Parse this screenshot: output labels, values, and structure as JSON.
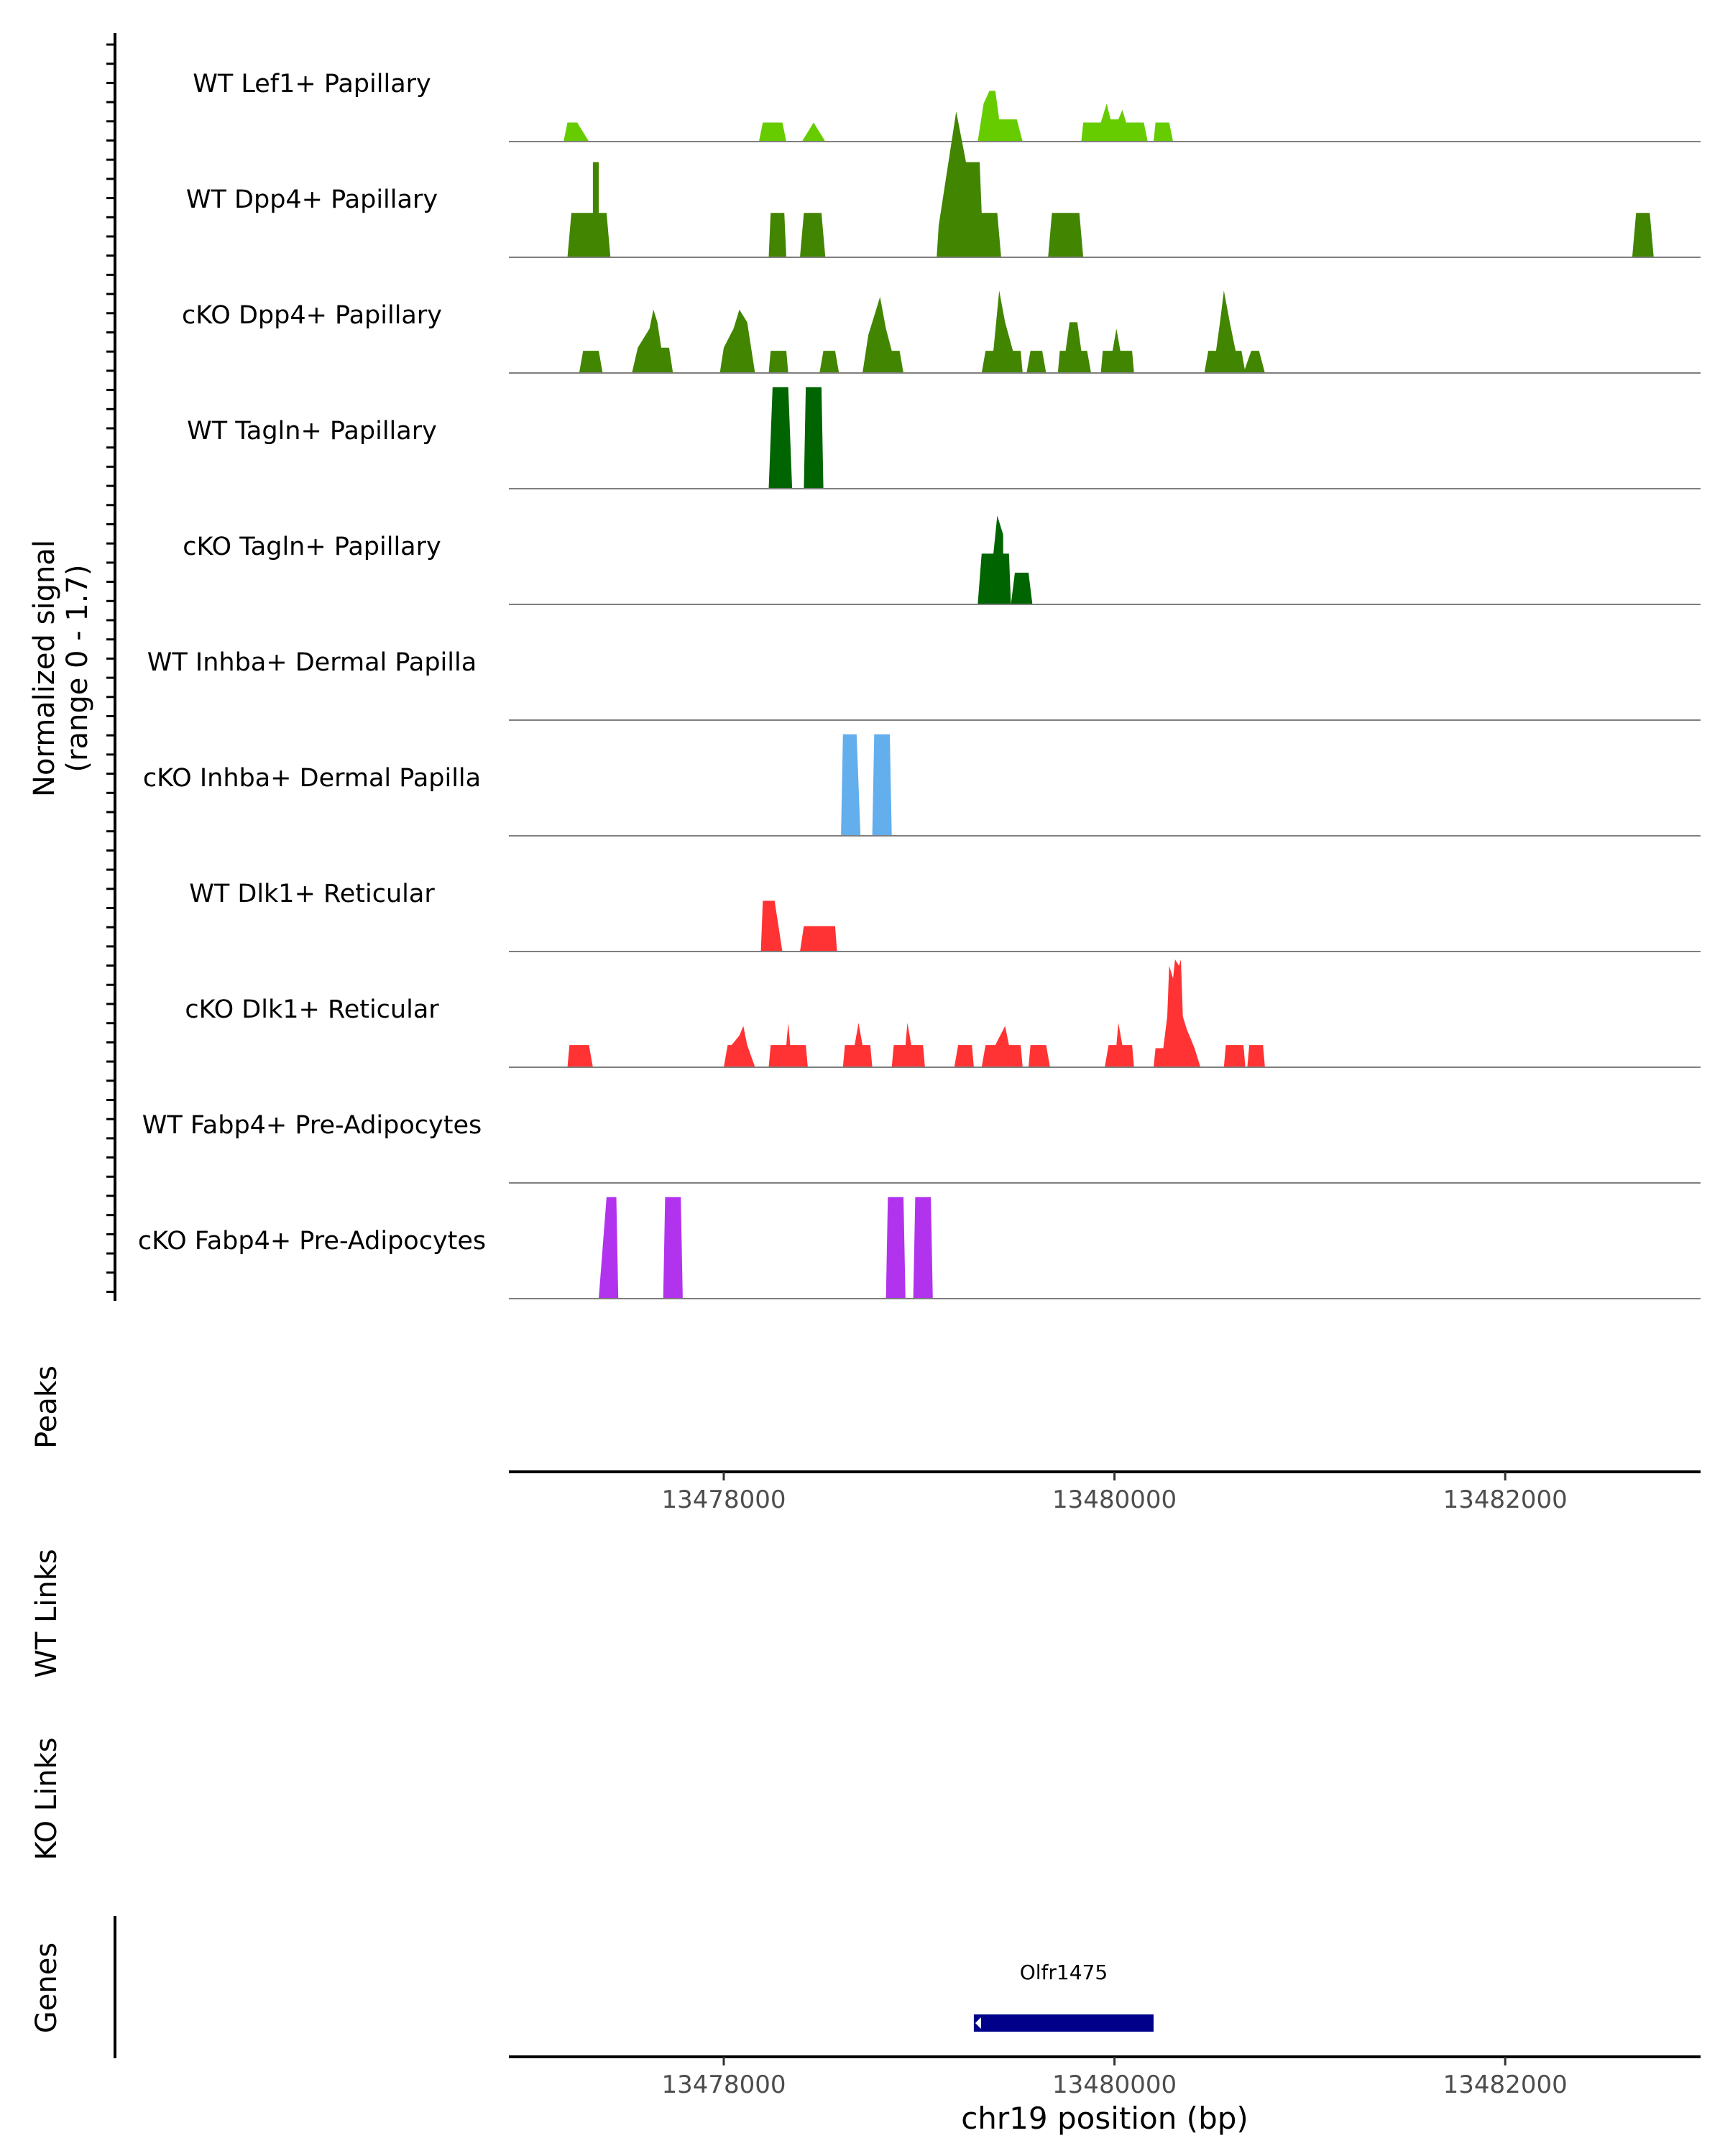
{
  "chart_data": {
    "type": "area",
    "title": "",
    "chromosome": "chr19",
    "x_range": [
      13476900,
      13483000
    ],
    "xlabel": "chr19 position (bp)",
    "x_ticks": [
      13478000,
      13480000,
      13482000
    ],
    "x_tick_labels": [
      "13478000",
      "13480000",
      "13482000"
    ],
    "ylabel_line1": "Normalized signal",
    "ylabel_line2": "(range 0 - 1.7)",
    "y_range": [
      0,
      1.7
    ],
    "tracks": [
      {
        "name": "WT Lef1+ Papillary",
        "color": "#66cc00",
        "points": [
          [
            13477180,
            0
          ],
          [
            13477200,
            0.3
          ],
          [
            13477250,
            0.3
          ],
          [
            13477310,
            0
          ],
          [
            13478180,
            0
          ],
          [
            13478200,
            0.3
          ],
          [
            13478300,
            0.3
          ],
          [
            13478320,
            0
          ],
          [
            13478400,
            0
          ],
          [
            13478460,
            0.3
          ],
          [
            13478520,
            0
          ],
          [
            13479300,
            0
          ],
          [
            13479330,
            0.6
          ],
          [
            13479360,
            0.8
          ],
          [
            13479390,
            0.8
          ],
          [
            13479410,
            0.35
          ],
          [
            13479500,
            0.35
          ],
          [
            13479530,
            0
          ],
          [
            13479830,
            0
          ],
          [
            13479840,
            0.3
          ],
          [
            13479930,
            0.3
          ],
          [
            13479960,
            0.6
          ],
          [
            13479980,
            0.35
          ],
          [
            13480020,
            0.35
          ],
          [
            13480040,
            0.5
          ],
          [
            13480060,
            0.3
          ],
          [
            13480150,
            0.3
          ],
          [
            13480170,
            0
          ],
          [
            13480200,
            0
          ],
          [
            13480210,
            0.3
          ],
          [
            13480280,
            0.3
          ],
          [
            13480300,
            0
          ]
        ]
      },
      {
        "name": "WT Dpp4+ Papillary",
        "color": "#428500",
        "points": [
          [
            13477200,
            0
          ],
          [
            13477220,
            0.7
          ],
          [
            13477330,
            0.7
          ],
          [
            13477330,
            1.5
          ],
          [
            13477360,
            1.5
          ],
          [
            13477360,
            0.7
          ],
          [
            13477400,
            0.7
          ],
          [
            13477420,
            0
          ],
          [
            13478230,
            0
          ],
          [
            13478240,
            0.7
          ],
          [
            13478310,
            0.7
          ],
          [
            13478320,
            0
          ],
          [
            13478390,
            0
          ],
          [
            13478410,
            0.7
          ],
          [
            13478500,
            0.7
          ],
          [
            13478520,
            0
          ],
          [
            13479090,
            0
          ],
          [
            13479100,
            0.5
          ],
          [
            13479190,
            2.3
          ],
          [
            13479240,
            1.5
          ],
          [
            13479310,
            1.5
          ],
          [
            13479320,
            0.7
          ],
          [
            13479400,
            0.7
          ],
          [
            13479420,
            0
          ],
          [
            13479660,
            0
          ],
          [
            13479680,
            0.7
          ],
          [
            13479820,
            0.7
          ],
          [
            13479840,
            0
          ],
          [
            13482650,
            0
          ],
          [
            13482670,
            0.7
          ],
          [
            13482740,
            0.7
          ],
          [
            13482760,
            0
          ]
        ]
      },
      {
        "name": "cKO Dpp4+ Papillary",
        "color": "#428500",
        "points": [
          [
            13477260,
            0
          ],
          [
            13477280,
            0.35
          ],
          [
            13477360,
            0.35
          ],
          [
            13477380,
            0
          ],
          [
            13477530,
            0
          ],
          [
            13477560,
            0.4
          ],
          [
            13477620,
            0.7
          ],
          [
            13477640,
            1
          ],
          [
            13477660,
            0.8
          ],
          [
            13477680,
            0.4
          ],
          [
            13477720,
            0.4
          ],
          [
            13477740,
            0
          ],
          [
            13477980,
            0
          ],
          [
            13478000,
            0.4
          ],
          [
            13478050,
            0.7
          ],
          [
            13478080,
            1
          ],
          [
            13478120,
            0.8
          ],
          [
            13478140,
            0.4
          ],
          [
            13478160,
            0
          ],
          [
            13478230,
            0
          ],
          [
            13478240,
            0.35
          ],
          [
            13478320,
            0.35
          ],
          [
            13478330,
            0
          ],
          [
            13478490,
            0
          ],
          [
            13478510,
            0.35
          ],
          [
            13478570,
            0.35
          ],
          [
            13478590,
            0
          ],
          [
            13478710,
            0
          ],
          [
            13478740,
            0.6
          ],
          [
            13478780,
            1
          ],
          [
            13478800,
            1.2
          ],
          [
            13478830,
            0.7
          ],
          [
            13478860,
            0.35
          ],
          [
            13478900,
            0.35
          ],
          [
            13478920,
            0
          ],
          [
            13479320,
            0
          ],
          [
            13479340,
            0.35
          ],
          [
            13479380,
            0.35
          ],
          [
            13479410,
            1.3
          ],
          [
            13479440,
            0.8
          ],
          [
            13479480,
            0.35
          ],
          [
            13479520,
            0.35
          ],
          [
            13479530,
            0
          ],
          [
            13479550,
            0
          ],
          [
            13479570,
            0.35
          ],
          [
            13479630,
            0.35
          ],
          [
            13479650,
            0
          ],
          [
            13479710,
            0
          ],
          [
            13479720,
            0.35
          ],
          [
            13479750,
            0.35
          ],
          [
            13479770,
            0.8
          ],
          [
            13479810,
            0.8
          ],
          [
            13479830,
            0.35
          ],
          [
            13479860,
            0.35
          ],
          [
            13479880,
            0
          ],
          [
            13479930,
            0
          ],
          [
            13479940,
            0.35
          ],
          [
            13479990,
            0.35
          ],
          [
            13480010,
            0.7
          ],
          [
            13480030,
            0.35
          ],
          [
            13480090,
            0.35
          ],
          [
            13480100,
            0
          ],
          [
            13480460,
            0
          ],
          [
            13480480,
            0.35
          ],
          [
            13480520,
            0.35
          ],
          [
            13480540,
            0.8
          ],
          [
            13480560,
            1.3
          ],
          [
            13480590,
            0.8
          ],
          [
            13480620,
            0.35
          ],
          [
            13480650,
            0.35
          ],
          [
            13480670,
            0
          ],
          [
            13480660,
            0
          ],
          [
            13480700,
            0.35
          ],
          [
            13480740,
            0.35
          ],
          [
            13480770,
            0
          ]
        ]
      },
      {
        "name": "WT Tagln+ Papillary",
        "color": "#006400",
        "points": [
          [
            13478230,
            0
          ],
          [
            13478250,
            1.6
          ],
          [
            13478330,
            1.6
          ],
          [
            13478350,
            0
          ],
          [
            13478410,
            0
          ],
          [
            13478420,
            1.6
          ],
          [
            13478500,
            1.6
          ],
          [
            13478510,
            0
          ]
        ]
      },
      {
        "name": "cKO Tagln+ Papillary",
        "color": "#006400",
        "points": [
          [
            13479300,
            0
          ],
          [
            13479320,
            0.8
          ],
          [
            13479380,
            0.8
          ],
          [
            13479400,
            1.4
          ],
          [
            13479430,
            1.1
          ],
          [
            13479430,
            0.8
          ],
          [
            13479460,
            0.8
          ],
          [
            13479470,
            0
          ],
          [
            13479470,
            0
          ],
          [
            13479490,
            0.5
          ],
          [
            13479560,
            0.5
          ],
          [
            13479580,
            0
          ]
        ]
      },
      {
        "name": "WT Inhba+ Dermal Papilla",
        "color": "#63aeec",
        "points": []
      },
      {
        "name": "cKO Inhba+ Dermal Papilla",
        "color": "#63aeec",
        "points": [
          [
            13478600,
            0
          ],
          [
            13478610,
            1.6
          ],
          [
            13478680,
            1.6
          ],
          [
            13478700,
            0
          ],
          [
            13478760,
            0
          ],
          [
            13478770,
            1.6
          ],
          [
            13478850,
            1.6
          ],
          [
            13478860,
            0
          ]
        ]
      },
      {
        "name": "WT Dlk1+ Reticular",
        "color": "#ff3333",
        "points": [
          [
            13478190,
            0
          ],
          [
            13478200,
            0.8
          ],
          [
            13478260,
            0.8
          ],
          [
            13478300,
            0
          ],
          [
            13478390,
            0
          ],
          [
            13478410,
            0.4
          ],
          [
            13478570,
            0.4
          ],
          [
            13478580,
            0
          ]
        ]
      },
      {
        "name": "cKO Dlk1+ Reticular",
        "color": "#ff3333",
        "points": [
          [
            13477200,
            0
          ],
          [
            13477210,
            0.35
          ],
          [
            13477310,
            0.35
          ],
          [
            13477330,
            0
          ],
          [
            13478000,
            0
          ],
          [
            13478020,
            0.35
          ],
          [
            13478040,
            0.35
          ],
          [
            13478080,
            0.5
          ],
          [
            13478100,
            0.65
          ],
          [
            13478120,
            0.35
          ],
          [
            13478160,
            0
          ],
          [
            13478230,
            0
          ],
          [
            13478240,
            0.35
          ],
          [
            13478320,
            0.35
          ],
          [
            13478330,
            0.7
          ],
          [
            13478340,
            0.35
          ],
          [
            13478420,
            0.35
          ],
          [
            13478430,
            0
          ],
          [
            13478610,
            0
          ],
          [
            13478620,
            0.35
          ],
          [
            13478670,
            0.35
          ],
          [
            13478690,
            0.7
          ],
          [
            13478710,
            0.35
          ],
          [
            13478750,
            0.35
          ],
          [
            13478760,
            0
          ],
          [
            13478860,
            0
          ],
          [
            13478870,
            0.35
          ],
          [
            13478930,
            0.35
          ],
          [
            13478940,
            0.7
          ],
          [
            13478960,
            0.35
          ],
          [
            13479020,
            0.35
          ],
          [
            13479030,
            0
          ],
          [
            13479180,
            0
          ],
          [
            13479200,
            0.35
          ],
          [
            13479270,
            0.35
          ],
          [
            13479280,
            0
          ],
          [
            13479320,
            0
          ],
          [
            13479340,
            0.35
          ],
          [
            13479390,
            0.35
          ],
          [
            13479440,
            0.65
          ],
          [
            13479460,
            0.35
          ],
          [
            13479520,
            0.35
          ],
          [
            13479530,
            0
          ],
          [
            13479560,
            0
          ],
          [
            13479570,
            0.35
          ],
          [
            13479650,
            0.35
          ],
          [
            13479670,
            0
          ],
          [
            13479950,
            0
          ],
          [
            13479970,
            0.35
          ],
          [
            13480010,
            0.35
          ],
          [
            13480020,
            0.7
          ],
          [
            13480040,
            0.35
          ],
          [
            13480090,
            0.35
          ],
          [
            13480100,
            0
          ],
          [
            13480200,
            0
          ],
          [
            13480210,
            0.3
          ],
          [
            13480250,
            0.3
          ],
          [
            13480270,
            0.8
          ],
          [
            13480280,
            1.6
          ],
          [
            13480300,
            1.4
          ],
          [
            13480310,
            1.7
          ],
          [
            13480330,
            1.6
          ],
          [
            13480340,
            1.7
          ],
          [
            13480350,
            0.8
          ],
          [
            13480370,
            0.6
          ],
          [
            13480410,
            0.3
          ],
          [
            13480440,
            0
          ],
          [
            13480560,
            0
          ],
          [
            13480570,
            0.35
          ],
          [
            13480660,
            0.35
          ],
          [
            13480670,
            0
          ],
          [
            13480680,
            0
          ],
          [
            13480690,
            0.35
          ],
          [
            13480760,
            0.35
          ],
          [
            13480770,
            0
          ]
        ]
      },
      {
        "name": "WT Fabp4+ Pre-Adipocytes",
        "color": "#b233ee",
        "points": []
      },
      {
        "name": "cKO Fabp4+ Pre-Adipocytes",
        "color": "#b233ee",
        "points": [
          [
            13477360,
            0
          ],
          [
            13477400,
            1.6
          ],
          [
            13477450,
            1.6
          ],
          [
            13477460,
            0
          ],
          [
            13477690,
            0
          ],
          [
            13477700,
            1.6
          ],
          [
            13477780,
            1.6
          ],
          [
            13477790,
            0
          ],
          [
            13478830,
            0
          ],
          [
            13478840,
            1.6
          ],
          [
            13478920,
            1.6
          ],
          [
            13478930,
            0
          ],
          [
            13478970,
            0
          ],
          [
            13478980,
            1.6
          ],
          [
            13479060,
            1.6
          ],
          [
            13479070,
            0
          ]
        ]
      }
    ],
    "peaks_label": "Peaks",
    "wt_links_label": "WT Links",
    "ko_links_label": "KO Links",
    "genes_label": "Genes",
    "genes": [
      {
        "name": "Olfr1475",
        "start": 13479280,
        "end": 13480200,
        "color": "#00008b"
      }
    ]
  }
}
